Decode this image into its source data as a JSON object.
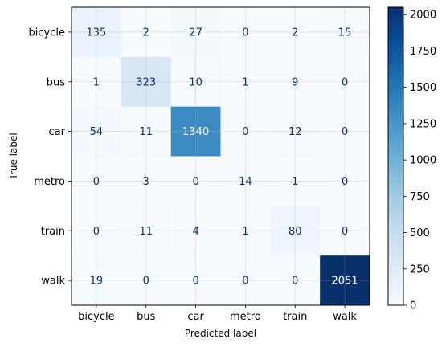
{
  "chart_data": {
    "type": "heatmap",
    "title": "",
    "xlabel": "Predicted label",
    "ylabel": "True label",
    "x_categories": [
      "bicycle",
      "bus",
      "car",
      "metro",
      "train",
      "walk"
    ],
    "y_categories": [
      "bicycle",
      "bus",
      "car",
      "metro",
      "train",
      "walk"
    ],
    "values": [
      [
        135,
        2,
        27,
        0,
        2,
        15
      ],
      [
        1,
        323,
        10,
        1,
        9,
        0
      ],
      [
        54,
        11,
        1340,
        0,
        12,
        0
      ],
      [
        0,
        3,
        0,
        14,
        1,
        0
      ],
      [
        0,
        11,
        4,
        1,
        80,
        0
      ],
      [
        19,
        0,
        0,
        0,
        0,
        2051
      ]
    ],
    "colormap": "Blues",
    "vmin": 0,
    "vmax": 2051,
    "colorbar_ticks": [
      0,
      250,
      500,
      750,
      1000,
      1250,
      1500,
      1750,
      2000
    ],
    "grid": true,
    "text_color_light": "#ffffff",
    "text_color_dark": "#08306b"
  }
}
